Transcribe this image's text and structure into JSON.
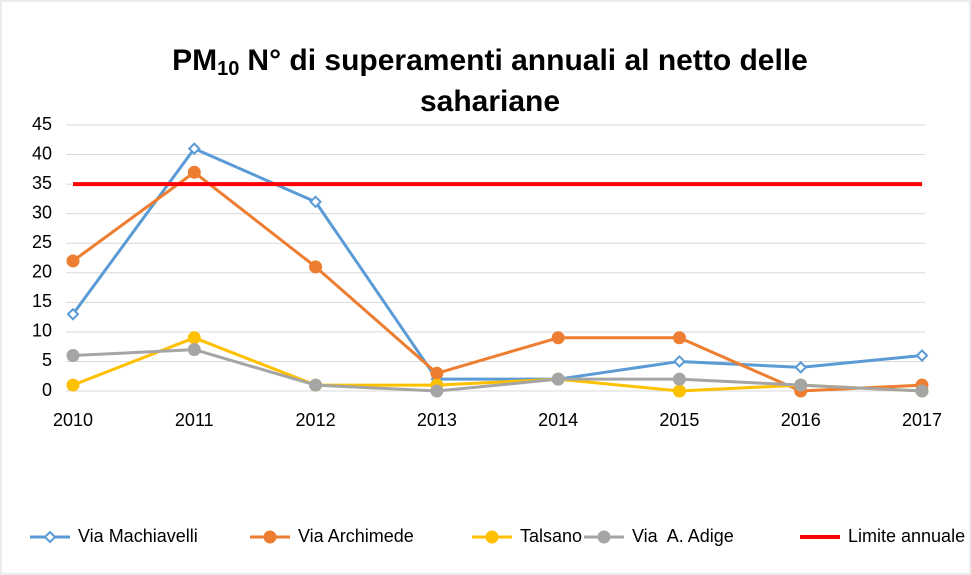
{
  "chart_data": {
    "type": "line",
    "title": {
      "lead": "PM",
      "sub": "10",
      "line1": "N° di superamenti annuali al netto delle",
      "line2": "sahariane"
    },
    "x": [
      2010,
      2011,
      2012,
      2013,
      2014,
      2015,
      2016,
      2017
    ],
    "xlim": [
      2010,
      2017
    ],
    "xticks": [
      2010,
      2011,
      2012,
      2013,
      2014,
      2015,
      2016,
      2017
    ],
    "ylim": [
      0,
      45
    ],
    "yticks": [
      0,
      5,
      10,
      15,
      20,
      25,
      30,
      35,
      40,
      45
    ],
    "grid": true,
    "legend": "bottom",
    "series": [
      {
        "name": "Via Machiavelli",
        "color": "#5B9BD5",
        "marker": "diamond",
        "values": [
          13,
          41,
          32,
          2,
          2,
          5,
          4,
          6
        ]
      },
      {
        "name": "Via Archimede",
        "color": "#ED7D31",
        "marker": "circle",
        "values": [
          22,
          37,
          21,
          3,
          9,
          9,
          0,
          1
        ]
      },
      {
        "name": "Talsano",
        "color": "#FFC000",
        "marker": "circle",
        "values": [
          1,
          9,
          1,
          1,
          2,
          0,
          1,
          0
        ]
      },
      {
        "name": "Via  A. Adige",
        "color": "#A5A5A5",
        "marker": "circle",
        "values": [
          6,
          7,
          1,
          0,
          2,
          2,
          1,
          0
        ]
      },
      {
        "name": "Limite annuale",
        "color": "#FF0000",
        "marker": "none",
        "values": [
          35,
          35,
          35,
          35,
          35,
          35,
          35,
          35
        ]
      }
    ]
  }
}
